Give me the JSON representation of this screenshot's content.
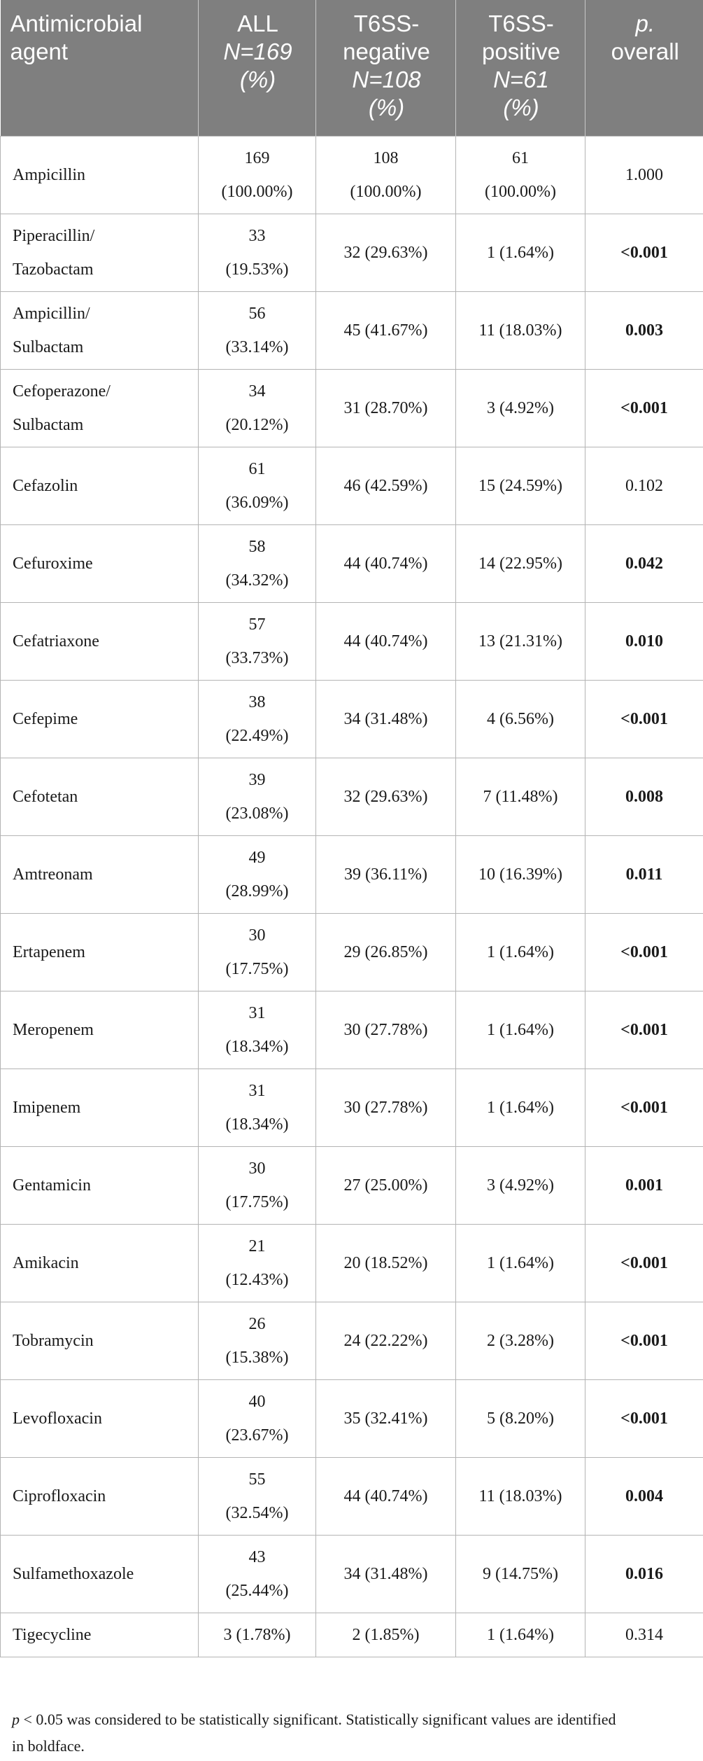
{
  "table": {
    "headers": [
      {
        "lines": [
          "Antimicrobial",
          "agent"
        ],
        "italic": [
          false,
          false
        ]
      },
      {
        "lines": [
          "ALL",
          "N=169",
          "(%)"
        ],
        "italic": [
          false,
          true,
          true
        ]
      },
      {
        "lines": [
          "T6SS-",
          "negative",
          "N=108",
          "(%)"
        ],
        "italic": [
          false,
          false,
          true,
          true
        ]
      },
      {
        "lines": [
          "T6SS-",
          "positive",
          "N=61",
          "(%)"
        ],
        "italic": [
          false,
          false,
          true,
          true
        ]
      },
      {
        "lines": [
          "p.",
          "overall"
        ],
        "italic": [
          true,
          false
        ]
      }
    ],
    "rows": [
      {
        "agent": [
          "Ampicillin"
        ],
        "all": [
          "169",
          "(100.00%)"
        ],
        "neg": [
          "108",
          "(100.00%)"
        ],
        "pos": [
          "61",
          "(100.00%)"
        ],
        "p": "1.000",
        "bold": false
      },
      {
        "agent": [
          "Piperacillin/",
          "Tazobactam"
        ],
        "all": [
          "33",
          "(19.53%)"
        ],
        "neg": [
          "32 (29.63%)"
        ],
        "pos": [
          "1 (1.64%)"
        ],
        "p": "<0.001",
        "bold": true
      },
      {
        "agent": [
          "Ampicillin/",
          "Sulbactam"
        ],
        "all": [
          "56",
          "(33.14%)"
        ],
        "neg": [
          "45 (41.67%)"
        ],
        "pos": [
          "11 (18.03%)"
        ],
        "p": "0.003",
        "bold": true
      },
      {
        "agent": [
          "Cefoperazone/",
          "Sulbactam"
        ],
        "all": [
          "34",
          "(20.12%)"
        ],
        "neg": [
          "31 (28.70%)"
        ],
        "pos": [
          "3 (4.92%)"
        ],
        "p": "<0.001",
        "bold": true
      },
      {
        "agent": [
          "Cefazolin"
        ],
        "all": [
          "61",
          "(36.09%)"
        ],
        "neg": [
          "46 (42.59%)"
        ],
        "pos": [
          "15 (24.59%)"
        ],
        "p": "0.102",
        "bold": false
      },
      {
        "agent": [
          "Cefuroxime"
        ],
        "all": [
          "58",
          "(34.32%)"
        ],
        "neg": [
          "44 (40.74%)"
        ],
        "pos": [
          "14 (22.95%)"
        ],
        "p": "0.042",
        "bold": true
      },
      {
        "agent": [
          "Cefatriaxone"
        ],
        "all": [
          "57",
          "(33.73%)"
        ],
        "neg": [
          "44 (40.74%)"
        ],
        "pos": [
          "13 (21.31%)"
        ],
        "p": "0.010",
        "bold": true
      },
      {
        "agent": [
          "Cefepime"
        ],
        "all": [
          "38",
          "(22.49%)"
        ],
        "neg": [
          "34 (31.48%)"
        ],
        "pos": [
          "4 (6.56%)"
        ],
        "p": "<0.001",
        "bold": true
      },
      {
        "agent": [
          "Cefotetan"
        ],
        "all": [
          "39",
          "(23.08%)"
        ],
        "neg": [
          "32 (29.63%)"
        ],
        "pos": [
          "7 (11.48%)"
        ],
        "p": "0.008",
        "bold": true
      },
      {
        "agent": [
          "Amtreonam"
        ],
        "all": [
          "49",
          "(28.99%)"
        ],
        "neg": [
          "39 (36.11%)"
        ],
        "pos": [
          "10 (16.39%)"
        ],
        "p": "0.011",
        "bold": true
      },
      {
        "agent": [
          "Ertapenem"
        ],
        "all": [
          "30",
          "(17.75%)"
        ],
        "neg": [
          "29 (26.85%)"
        ],
        "pos": [
          "1 (1.64%)"
        ],
        "p": "<0.001",
        "bold": true
      },
      {
        "agent": [
          "Meropenem"
        ],
        "all": [
          "31",
          "(18.34%)"
        ],
        "neg": [
          "30 (27.78%)"
        ],
        "pos": [
          "1 (1.64%)"
        ],
        "p": "<0.001",
        "bold": true
      },
      {
        "agent": [
          "Imipenem"
        ],
        "all": [
          "31",
          "(18.34%)"
        ],
        "neg": [
          "30 (27.78%)"
        ],
        "pos": [
          "1 (1.64%)"
        ],
        "p": "<0.001",
        "bold": true
      },
      {
        "agent": [
          "Gentamicin"
        ],
        "all": [
          "30",
          "(17.75%)"
        ],
        "neg": [
          "27 (25.00%)"
        ],
        "pos": [
          "3 (4.92%)"
        ],
        "p": "0.001",
        "bold": true
      },
      {
        "agent": [
          "Amikacin"
        ],
        "all": [
          "21",
          "(12.43%)"
        ],
        "neg": [
          "20 (18.52%)"
        ],
        "pos": [
          "1 (1.64%)"
        ],
        "p": "<0.001",
        "bold": true
      },
      {
        "agent": [
          "Tobramycin"
        ],
        "all": [
          "26",
          "(15.38%)"
        ],
        "neg": [
          "24 (22.22%)"
        ],
        "pos": [
          "2 (3.28%)"
        ],
        "p": "<0.001",
        "bold": true
      },
      {
        "agent": [
          "Levofloxacin"
        ],
        "all": [
          "40",
          "(23.67%)"
        ],
        "neg": [
          "35 (32.41%)"
        ],
        "pos": [
          "5 (8.20%)"
        ],
        "p": "<0.001",
        "bold": true
      },
      {
        "agent": [
          "Ciprofloxacin"
        ],
        "all": [
          "55",
          "(32.54%)"
        ],
        "neg": [
          "44 (40.74%)"
        ],
        "pos": [
          "11 (18.03%)"
        ],
        "p": "0.004",
        "bold": true
      },
      {
        "agent": [
          "Sulfamethoxazole"
        ],
        "all": [
          "43",
          "(25.44%)"
        ],
        "neg": [
          "34 (31.48%)"
        ],
        "pos": [
          "9 (14.75%)"
        ],
        "p": "0.016",
        "bold": true
      },
      {
        "agent": [
          "Tigecycline"
        ],
        "all": [
          "3 (1.78%)"
        ],
        "neg": [
          "2 (1.85%)"
        ],
        "pos": [
          "1 (1.64%)"
        ],
        "p": "0.314",
        "bold": false
      }
    ]
  },
  "footnote": {
    "p_symbol": "p",
    "text": " < 0.05 was considered to be statistically significant. Statistically significant values are identified in boldface."
  }
}
